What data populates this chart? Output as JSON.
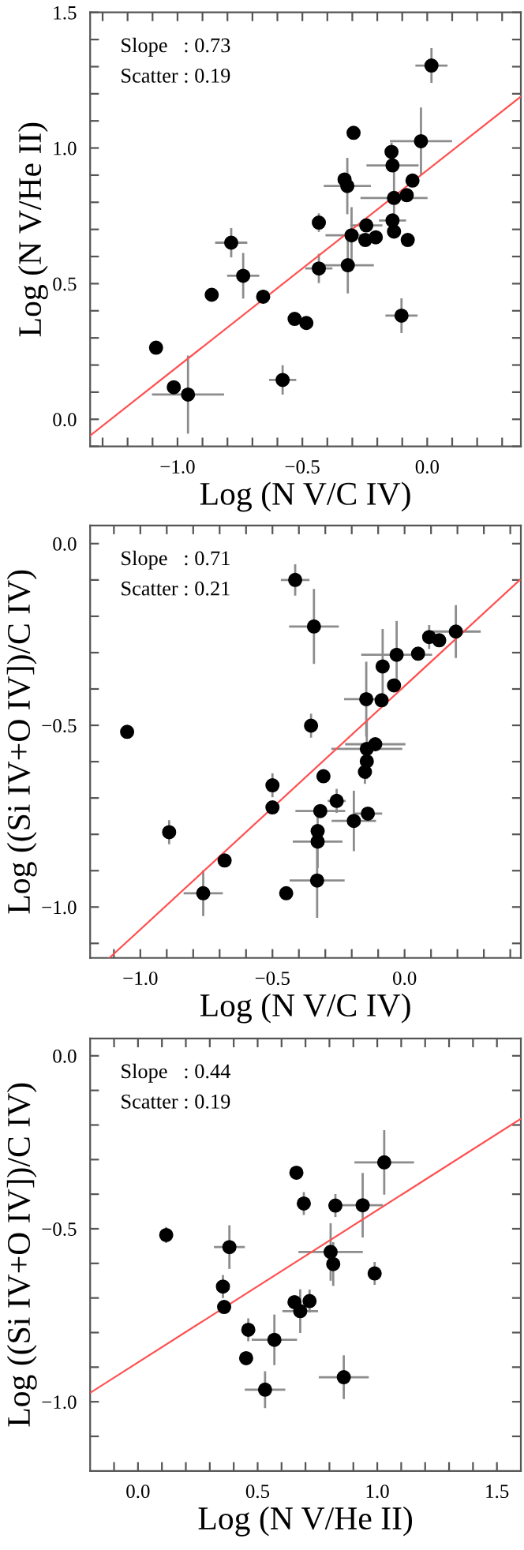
{
  "chart_data": [
    {
      "type": "scatter",
      "xlabel": "Log (N V/C IV)",
      "ylabel": "Log (N V/He II)",
      "annotations": [
        "Slope   : 0.73",
        "Scatter : 0.19"
      ],
      "grid": false,
      "legend": false,
      "xlim": [
        -1.35,
        0.375
      ],
      "ylim": [
        -0.1,
        1.5
      ],
      "xticks": [
        {
          "value": -1.3,
          "label": null
        },
        {
          "value": -1.2,
          "label": null
        },
        {
          "value": -1.1,
          "label": null
        },
        {
          "value": -1.0,
          "label": "−1.0"
        },
        {
          "value": -0.9,
          "label": null
        },
        {
          "value": -0.8,
          "label": null
        },
        {
          "value": -0.7,
          "label": null
        },
        {
          "value": -0.6,
          "label": null
        },
        {
          "value": -0.5,
          "label": "−0.5"
        },
        {
          "value": -0.4,
          "label": null
        },
        {
          "value": -0.3,
          "label": null
        },
        {
          "value": -0.2,
          "label": null
        },
        {
          "value": -0.1,
          "label": null
        },
        {
          "value": 0.0,
          "label": "0.0"
        },
        {
          "value": 0.1,
          "label": null
        },
        {
          "value": 0.2,
          "label": null
        },
        {
          "value": 0.3,
          "label": null
        }
      ],
      "yticks": [
        {
          "value": -0.1,
          "label": null
        },
        {
          "value": 0.0,
          "label": "0.0"
        },
        {
          "value": 0.1,
          "label": null
        },
        {
          "value": 0.2,
          "label": null
        },
        {
          "value": 0.3,
          "label": null
        },
        {
          "value": 0.4,
          "label": null
        },
        0.5,
        {
          "value": 0.6,
          "label": null
        },
        {
          "value": 0.7,
          "label": null
        },
        {
          "value": 0.8,
          "label": null
        },
        {
          "value": 0.9,
          "label": null
        },
        {
          "value": 1.0,
          "label": "1.0"
        },
        {
          "value": 1.1,
          "label": null
        },
        {
          "value": 1.2,
          "label": null
        },
        {
          "value": 1.3,
          "label": null
        },
        {
          "value": 1.4,
          "label": null
        },
        1.5
      ],
      "series": [
        {
          "color": "#000000",
          "marker": "circle",
          "x": [
            -1.086,
            -1.015,
            -0.958,
            -0.863,
            -0.785,
            -0.737,
            -0.657,
            -0.579,
            -0.531,
            -0.484,
            -0.434,
            -0.434,
            -0.331,
            -0.32,
            -0.318,
            -0.303,
            -0.295,
            -0.248,
            -0.244,
            -0.206,
            -0.143,
            -0.139,
            -0.133,
            -0.139,
            -0.133,
            -0.103,
            -0.082,
            -0.078,
            -0.059,
            -0.025,
            0.017
          ],
          "values": [
            0.264,
            0.118,
            0.091,
            0.459,
            0.651,
            0.529,
            0.452,
            0.145,
            0.37,
            0.355,
            0.725,
            0.556,
            0.884,
            0.86,
            0.568,
            0.678,
            1.056,
            0.661,
            0.715,
            0.671,
            0.986,
            0.936,
            0.816,
            0.733,
            0.692,
            0.382,
            0.826,
            0.661,
            0.88,
            1.025,
            1.304
          ],
          "errors": [
            null,
            null,
            0.14,
            null,
            0.05,
            0.08,
            null,
            0.05,
            null,
            null,
            0.03,
            0.05,
            0.02,
            0.1,
            0.1,
            0.1,
            null,
            null,
            null,
            null,
            0.03,
            null,
            0.1,
            null,
            null,
            0.06,
            null,
            null,
            null,
            0.12,
            0.06
          ],
          "xerrors": [
            null,
            null,
            0.14,
            null,
            0.06,
            0.06,
            null,
            0.05,
            null,
            null,
            null,
            0.05,
            null,
            0.09,
            0.1,
            0.1,
            null,
            null,
            0.06,
            null,
            null,
            0.1,
            0.13,
            0.05,
            null,
            0.06,
            null,
            null,
            null,
            0.12,
            0.06
          ]
        },
        {
          "type": "line",
          "color": "#ff5050",
          "x": [
            -1.35,
            0.375
          ],
          "values": [
            -0.06,
            1.19
          ]
        }
      ]
    },
    {
      "type": "scatter",
      "xlabel": "Log (N V/C IV)",
      "ylabel": "Log ((Si IV+O IV])/C IV)",
      "annotations": [
        "Slope   : 0.71",
        "Scatter : 0.21"
      ],
      "grid": false,
      "legend": false,
      "xlim": [
        -1.19,
        0.44
      ],
      "ylim": [
        -1.14,
        0.05
      ],
      "xticks": [
        {
          "value": -1.1,
          "label": null
        },
        {
          "value": -1.0,
          "label": "−1.0"
        },
        {
          "value": -0.9,
          "label": null
        },
        {
          "value": -0.8,
          "label": null
        },
        {
          "value": -0.7,
          "label": null
        },
        {
          "value": -0.6,
          "label": null
        },
        {
          "value": -0.5,
          "label": "−0.5"
        },
        {
          "value": -0.4,
          "label": null
        },
        {
          "value": -0.3,
          "label": null
        },
        {
          "value": -0.2,
          "label": null
        },
        {
          "value": -0.1,
          "label": null
        },
        {
          "value": 0.0,
          "label": "0.0"
        },
        {
          "value": 0.1,
          "label": null
        },
        {
          "value": 0.2,
          "label": null
        },
        {
          "value": 0.3,
          "label": null
        },
        {
          "value": 0.4,
          "label": null
        }
      ],
      "yticks": [
        {
          "value": -1.1,
          "label": null
        },
        {
          "value": -1.0,
          "label": "−1.0"
        },
        {
          "value": -0.9,
          "label": null
        },
        {
          "value": -0.8,
          "label": null
        },
        {
          "value": -0.7,
          "label": null
        },
        {
          "value": -0.6,
          "label": null
        },
        {
          "value": -0.5,
          "label": "−0.5"
        },
        {
          "value": -0.4,
          "label": null
        },
        {
          "value": -0.3,
          "label": null
        },
        {
          "value": -0.2,
          "label": null
        },
        {
          "value": -0.1,
          "label": null
        },
        {
          "value": 0.0,
          "label": "0.0"
        }
      ],
      "series": [
        {
          "color": "#000000",
          "marker": "circle",
          "x": [
            -1.05,
            -0.891,
            -0.762,
            -0.681,
            -0.5,
            -0.5,
            -0.448,
            -0.414,
            -0.354,
            -0.343,
            -0.331,
            -0.329,
            -0.329,
            -0.319,
            -0.307,
            -0.257,
            -0.192,
            -0.145,
            -0.143,
            -0.143,
            -0.15,
            -0.139,
            -0.111,
            -0.087,
            -0.083,
            -0.04,
            -0.03,
            0.051,
            0.093,
            0.131,
            0.194
          ],
          "values": [
            -0.518,
            -0.794,
            -0.962,
            -0.872,
            -0.665,
            -0.726,
            -0.962,
            -0.1,
            -0.501,
            -0.228,
            -0.927,
            -0.791,
            -0.82,
            -0.736,
            -0.64,
            -0.708,
            -0.763,
            -0.428,
            -0.565,
            -0.599,
            -0.628,
            -0.743,
            -0.552,
            -0.431,
            -0.338,
            -0.39,
            -0.306,
            -0.303,
            -0.257,
            -0.266,
            -0.242
          ],
          "errors": [
            null,
            0.03,
            0.06,
            null,
            0.03,
            null,
            null,
            0.04,
            0.03,
            0.1,
            0.1,
            null,
            0.07,
            null,
            null,
            0.03,
            0.08,
            0.1,
            0.08,
            null,
            0.03,
            null,
            null,
            null,
            0.1,
            null,
            0.09,
            null,
            0.03,
            null,
            0.07
          ],
          "xerrors": [
            null,
            null,
            0.07,
            null,
            null,
            null,
            null,
            0.05,
            null,
            0.09,
            0.1,
            null,
            0.09,
            0.09,
            null,
            0.03,
            0.08,
            0.08,
            0.13,
            null,
            null,
            0.05,
            0.11,
            null,
            null,
            null,
            0.13,
            null,
            null,
            null,
            0.09
          ]
        },
        {
          "type": "line",
          "color": "#ff5050",
          "x": [
            -1.117,
            0.436
          ],
          "values": [
            -1.14,
            -0.1
          ]
        }
      ]
    },
    {
      "type": "scatter",
      "xlabel": "Log (N V/He II)",
      "ylabel": "Log ((Si IV+O IV])/C IV)",
      "annotations": [
        "Slope   : 0.44",
        "Scatter : 0.19"
      ],
      "grid": false,
      "legend": false,
      "xlim": [
        -0.2,
        1.6
      ],
      "ylim": [
        -1.2,
        0.05
      ],
      "xticks": [
        {
          "value": -0.1,
          "label": null
        },
        {
          "value": 0.0,
          "label": "0.0"
        },
        {
          "value": 0.1,
          "label": null
        },
        {
          "value": 0.2,
          "label": null
        },
        {
          "value": 0.3,
          "label": null
        },
        {
          "value": 0.4,
          "label": null
        },
        0.5,
        {
          "value": 0.6,
          "label": null
        },
        {
          "value": 0.7,
          "label": null
        },
        {
          "value": 0.8,
          "label": null
        },
        {
          "value": 0.9,
          "label": null
        },
        {
          "value": 1.0,
          "label": "1.0"
        },
        {
          "value": 1.1,
          "label": null
        },
        {
          "value": 1.2,
          "label": null
        },
        {
          "value": 1.3,
          "label": null
        },
        {
          "value": 1.4,
          "label": null
        },
        1.5
      ],
      "yticks": [
        {
          "value": -1.1,
          "label": null
        },
        {
          "value": -1.0,
          "label": "−1.0"
        },
        {
          "value": -0.9,
          "label": null
        },
        {
          "value": -0.8,
          "label": null
        },
        {
          "value": -0.7,
          "label": null
        },
        {
          "value": -0.6,
          "label": null
        },
        {
          "value": -0.5,
          "label": "−0.5"
        },
        {
          "value": -0.4,
          "label": null
        },
        {
          "value": -0.3,
          "label": null
        },
        {
          "value": -0.2,
          "label": null
        },
        {
          "value": -0.1,
          "label": null
        },
        {
          "value": 0.0,
          "label": "0.0"
        }
      ],
      "series": [
        {
          "color": "#000000",
          "marker": "circle",
          "x": [
            0.118,
            0.355,
            0.36,
            0.382,
            0.461,
            0.452,
            0.531,
            0.57,
            0.662,
            0.654,
            0.678,
            0.693,
            0.717,
            0.805,
            0.816,
            0.825,
            0.86,
            0.939,
            0.989,
            1.029
          ],
          "values": [
            -0.518,
            -0.667,
            -0.726,
            -0.553,
            -0.792,
            -0.874,
            -0.965,
            -0.821,
            -0.338,
            -0.712,
            -0.738,
            -0.427,
            -0.709,
            -0.567,
            -0.602,
            -0.433,
            -0.929,
            -0.432,
            -0.629,
            -0.308
          ],
          "errors": [
            0.02,
            0.03,
            null,
            0.06,
            0.03,
            null,
            0.05,
            0.07,
            null,
            null,
            0.06,
            0.03,
            0.03,
            0.08,
            0.06,
            0.03,
            0.06,
            0.09,
            0.03,
            0.09
          ],
          "xerrors": [
            null,
            null,
            null,
            0.06,
            null,
            null,
            0.08,
            0.09,
            null,
            null,
            0.07,
            null,
            null,
            0.13,
            null,
            null,
            0.1,
            0.08,
            null,
            0.12
          ]
        },
        {
          "type": "line",
          "color": "#ff5050",
          "x": [
            -0.197,
            1.6
          ],
          "values": [
            -0.973,
            -0.182
          ]
        }
      ]
    }
  ]
}
